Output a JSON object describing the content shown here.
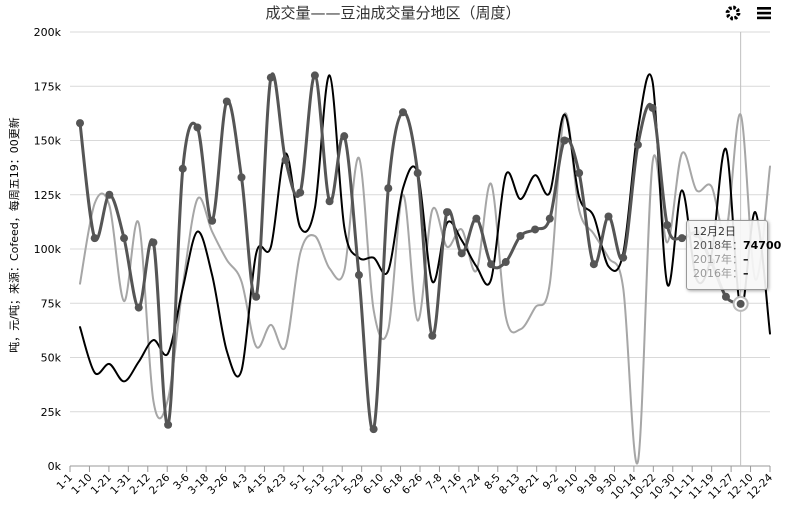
{
  "chart_data": {
    "type": "line",
    "title": "成交量——豆油成交量分地区（周度）",
    "ylabel": "吨，元/吨；来源：Cofeed，每周五19：00更新",
    "ylim": [
      0,
      200000
    ],
    "yticks": [
      "0k",
      "25k",
      "50k",
      "75k",
      "100k",
      "125k",
      "150k",
      "175k",
      "200k"
    ],
    "x_tick_labels": [
      "1-1",
      "1-10",
      "1-21",
      "1-31",
      "2-12",
      "2-26",
      "3-6",
      "3-18",
      "3-26",
      "4-3",
      "4-15",
      "4-23",
      "5-1",
      "5-13",
      "5-21",
      "5-29",
      "6-10",
      "6-18",
      "6-26",
      "7-8",
      "7-16",
      "7-24",
      "8-5",
      "8-13",
      "8-21",
      "9-2",
      "9-10",
      "9-18",
      "9-30",
      "10-14",
      "10-22",
      "10-30",
      "11-11",
      "11-19",
      "11-27",
      "12-10",
      "12-24"
    ],
    "grid": true,
    "series": [
      {
        "name": "2018年",
        "color": "#555555",
        "values": [
          158000,
          105000,
          125000,
          105000,
          73000,
          103000,
          19000,
          137000,
          156000,
          113000,
          168000,
          133000,
          78000,
          179000,
          141000,
          126000,
          180000,
          122000,
          152000,
          88000,
          17000,
          128000,
          163000,
          135000,
          60000,
          117000,
          98000,
          114000,
          93000,
          94000,
          106000,
          109000,
          114000,
          150000,
          135000,
          93000,
          115000,
          96000,
          148000,
          165000,
          111000,
          105000,
          107000,
          94000,
          78000,
          74700,
          null,
          null
        ]
      },
      {
        "name": "2017年",
        "color": "#000000",
        "values": [
          64000,
          43000,
          47000,
          39000,
          48000,
          58000,
          52000,
          82000,
          108000,
          88000,
          53000,
          44000,
          98000,
          101000,
          144000,
          110000,
          119000,
          180000,
          110000,
          96000,
          96000,
          90000,
          128000,
          135000,
          85000,
          112000,
          104000,
          92000,
          86000,
          134000,
          123000,
          134000,
          126000,
          162000,
          124000,
          115000,
          92000,
          98000,
          155000,
          177000,
          84000,
          127000,
          86000,
          97000,
          146000,
          73000,
          117000,
          61000
        ]
      },
      {
        "name": "2016年",
        "color": "#a6a6a6",
        "values": [
          84000,
          121000,
          120000,
          76000,
          112000,
          30000,
          31000,
          83000,
          123000,
          108000,
          95000,
          85000,
          55000,
          65000,
          55000,
          98000,
          106000,
          91000,
          90000,
          142000,
          72000,
          63000,
          125000,
          67000,
          118000,
          101000,
          109000,
          90000,
          130000,
          69000,
          63000,
          73000,
          84000,
          162000,
          118000,
          107000,
          96000,
          82000,
          2000,
          140000,
          103000,
          144000,
          127000,
          129000,
          108000,
          162000,
          86000,
          138000
        ]
      }
    ],
    "tooltip": {
      "date": "12月2日",
      "rows": [
        {
          "label": "2018年：",
          "value": "74700"
        },
        {
          "label": "2017年：",
          "value": "–"
        },
        {
          "label": "2016年：",
          "value": "–"
        }
      ]
    },
    "tooltip_index": 45
  },
  "toolbar": {
    "settings_icon": "gear-icon",
    "menu_icon": "hamburger-menu-icon"
  }
}
